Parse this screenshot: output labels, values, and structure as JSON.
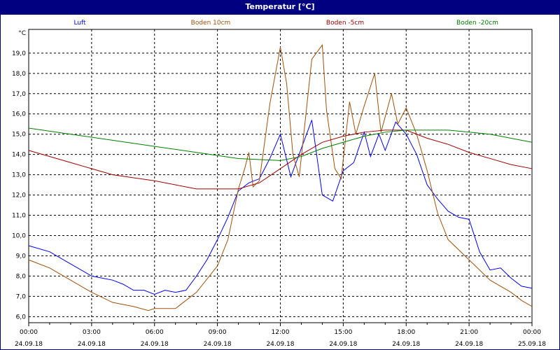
{
  "chart_data": {
    "type": "line",
    "title": "Temperatur [°C]",
    "ylabel": "°C",
    "ylim": [
      5.7,
      20.17
    ],
    "xlim": [
      0,
      24
    ],
    "grid": true,
    "yticks": [
      {
        "v": 6,
        "label": "6,0"
      },
      {
        "v": 7,
        "label": "7,0"
      },
      {
        "v": 8,
        "label": "8,0"
      },
      {
        "v": 9,
        "label": "9,0"
      },
      {
        "v": 10,
        "label": "10,0"
      },
      {
        "v": 11,
        "label": "11,0"
      },
      {
        "v": 12,
        "label": "12,0"
      },
      {
        "v": 13,
        "label": "13,0"
      },
      {
        "v": 14,
        "label": "14,0"
      },
      {
        "v": 15,
        "label": "15,0"
      },
      {
        "v": 16,
        "label": "16,0"
      },
      {
        "v": 17,
        "label": "17,0"
      },
      {
        "v": 18,
        "label": "18,0"
      },
      {
        "v": 19,
        "label": "19,0"
      }
    ],
    "xticks": [
      {
        "v": 0,
        "time": "00:00",
        "date": "24.09.18"
      },
      {
        "v": 3,
        "time": "03:00",
        "date": "24.09.18"
      },
      {
        "v": 6,
        "time": "06:00",
        "date": "24.09.18"
      },
      {
        "v": 9,
        "time": "09:00",
        "date": "24.09.18"
      },
      {
        "v": 12,
        "time": "12:00",
        "date": "24.09.18"
      },
      {
        "v": 15,
        "time": "15:00",
        "date": "24.09.18"
      },
      {
        "v": 18,
        "time": "18:00",
        "date": "24.09.18"
      },
      {
        "v": 21,
        "time": "21:00",
        "date": "24.09.18"
      },
      {
        "v": 24,
        "time": "00:00",
        "date": "25.09.18"
      }
    ],
    "legend_placement": "top",
    "series": [
      {
        "name": "Luft",
        "color": "#0000ff",
        "x": [
          0,
          1,
          2,
          3,
          3.5,
          4,
          4.5,
          5,
          5.5,
          6,
          6.5,
          7,
          7.5,
          8,
          8.5,
          9,
          9.5,
          10,
          10.5,
          11,
          11.5,
          12,
          12.5,
          13,
          13.5,
          14,
          14.5,
          15,
          15.5,
          16,
          16.3,
          16.7,
          17,
          17.5,
          18,
          18.5,
          19,
          19.5,
          20,
          20.5,
          21,
          21.5,
          22,
          22.5,
          23,
          23.5,
          24
        ],
        "y": [
          9.5,
          9.2,
          8.6,
          8.0,
          7.9,
          7.8,
          7.6,
          7.3,
          7.3,
          7.1,
          7.3,
          7.2,
          7.3,
          8.0,
          8.8,
          9.8,
          10.9,
          12.2,
          12.6,
          12.8,
          13.8,
          15.0,
          12.9,
          14.3,
          15.7,
          12.0,
          11.7,
          13.2,
          13.6,
          15.1,
          13.9,
          15.0,
          14.2,
          15.6,
          15.0,
          14.0,
          12.5,
          11.8,
          11.2,
          10.9,
          10.8,
          9.2,
          8.3,
          8.4,
          7.9,
          7.5,
          7.4
        ]
      },
      {
        "name": "Boden 10cm",
        "color": "#a0500a",
        "x": [
          0,
          1,
          2,
          3,
          4,
          5,
          5.7,
          6,
          7,
          8,
          9,
          9.5,
          10,
          10.3,
          10.5,
          10.7,
          11,
          11.5,
          12,
          12.3,
          12.6,
          12.9,
          13.2,
          13.5,
          14,
          14.2,
          14.6,
          14.9,
          15.3,
          15.6,
          16,
          16.5,
          16.8,
          17.3,
          17.6,
          18,
          18.5,
          19,
          19.5,
          20,
          21,
          22,
          23,
          23.5,
          24
        ],
        "y": [
          8.8,
          8.4,
          7.8,
          7.2,
          6.7,
          6.5,
          6.3,
          6.4,
          6.4,
          7.2,
          8.5,
          9.8,
          12.3,
          13.3,
          14.1,
          12.4,
          12.7,
          16.5,
          19.3,
          17.5,
          14.0,
          12.9,
          15.8,
          18.7,
          19.4,
          16.2,
          13.3,
          12.8,
          16.6,
          15.0,
          16.4,
          18.0,
          15.1,
          17.0,
          15.5,
          16.3,
          15.0,
          13.2,
          11.1,
          9.8,
          8.8,
          7.8,
          7.2,
          6.8,
          6.5
        ]
      },
      {
        "name": "Boden -5cm",
        "color": "#a00000",
        "x": [
          0,
          2,
          4,
          6,
          8,
          10,
          11,
          12,
          13,
          14,
          15,
          16,
          17,
          18,
          19,
          20,
          21,
          22,
          23,
          24
        ],
        "y": [
          14.2,
          13.6,
          13.0,
          12.7,
          12.3,
          12.3,
          12.6,
          13.3,
          14.0,
          14.6,
          14.9,
          15.1,
          15.2,
          15.2,
          14.8,
          14.5,
          14.1,
          13.8,
          13.5,
          13.3
        ]
      },
      {
        "name": "Boden -20cm",
        "color": "#008000",
        "x": [
          0,
          2,
          4,
          6,
          8,
          10,
          12,
          13,
          14,
          15,
          16,
          17,
          18,
          19,
          20,
          21,
          22,
          23,
          24
        ],
        "y": [
          15.3,
          15.0,
          14.7,
          14.4,
          14.1,
          13.8,
          13.7,
          13.9,
          14.3,
          14.6,
          14.9,
          15.1,
          15.2,
          15.2,
          15.2,
          15.1,
          15.0,
          14.8,
          14.6
        ]
      }
    ]
  }
}
